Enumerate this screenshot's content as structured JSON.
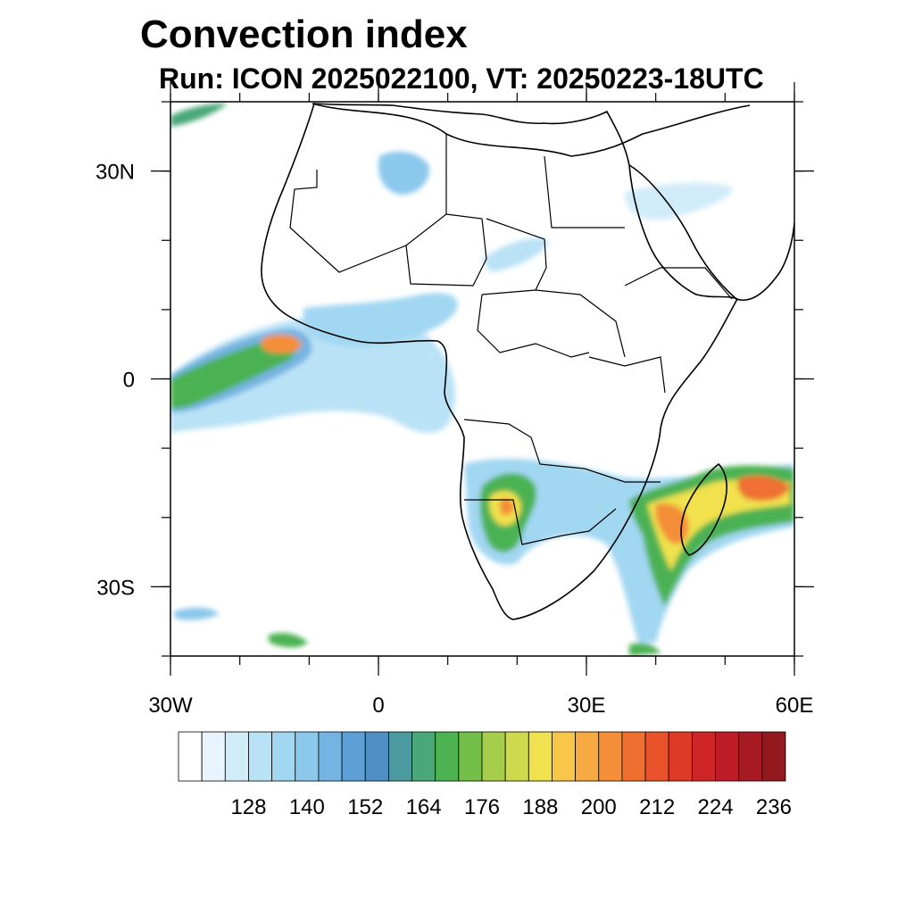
{
  "title": "Convection index",
  "subtitle": "Run: ICON 2025022100,  VT: 20250223-18UTC",
  "map": {
    "lon_range": [
      -30,
      60
    ],
    "lat_range": [
      -40,
      40
    ],
    "lon_ticks": [
      {
        "value": -30,
        "label": "30W"
      },
      {
        "value": 0,
        "label": "0"
      },
      {
        "value": 30,
        "label": "30E"
      },
      {
        "value": 60,
        "label": "60E"
      }
    ],
    "lat_ticks": [
      {
        "value": 30,
        "label": "30N"
      },
      {
        "value": 0,
        "label": "0"
      },
      {
        "value": -30,
        "label": "30S"
      }
    ],
    "region": "Africa and surrounding oceans"
  },
  "colorbar": {
    "labels": [
      "128",
      "140",
      "152",
      "164",
      "176",
      "188",
      "200",
      "212",
      "224",
      "236"
    ],
    "colors": [
      "#ffffff",
      "#e8f5fc",
      "#d1ecf9",
      "#b9e2f6",
      "#a2d7f2",
      "#8bc8ec",
      "#74b4e2",
      "#5e9fd5",
      "#4f8fc4",
      "#4a9aa0",
      "#4aa878",
      "#4cb252",
      "#74be4a",
      "#a6cd4c",
      "#cfd94d",
      "#f0e14e",
      "#f8c74a",
      "#f7a942",
      "#f48e39",
      "#ef6f31",
      "#e8532b",
      "#de3a28",
      "#cf2527",
      "#be1c26",
      "#a81a23",
      "#921a1f"
    ]
  }
}
